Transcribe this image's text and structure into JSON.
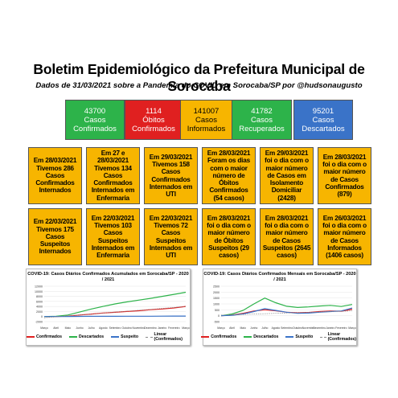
{
  "header": {
    "title": "Boletim Epidemiológico da Prefeitura Municipal de Sorocaba",
    "subtitle": "Dados de 31/03/2021 sobre a Pandemia do COVID em Sorocaba/SP por @hudsonaugusto"
  },
  "stats": [
    {
      "value": "43700",
      "line1": "Casos",
      "line2": "Confirmados",
      "color": "#2db34a"
    },
    {
      "value": "1114",
      "line1": "Óbitos",
      "line2": "Confirmados",
      "color": "#e02020"
    },
    {
      "value": "141007",
      "line1": "Casos",
      "line2": "Informados",
      "color": "#f7b500"
    },
    {
      "value": "41782",
      "line1": "Casos",
      "line2": "Recuperados",
      "color": "#2db34a"
    },
    {
      "value": "95201",
      "line1": "Casos",
      "line2": "Descartados",
      "color": "#3a73c8"
    }
  ],
  "cards": [
    "Em 28/03/2021 Tivemos 286 Casos Confirmados Internados",
    "Em 27 e 28/03/2021 Tivemos 134 Casos Confirmados Internados em Enfermaria",
    "Em 29/03/2021 Tivemos 158 Casos Confirmados Internados em UTI",
    "Em 28/03/2021 Foram os dias com o maior número de Óbitos Confirmados (54 casos)",
    "Em 29/03/2021 foi o dia com o maior número de Casos em Isolamento Domiciliar (2428)",
    "Em 28/03/2021 foi o dia com o maior número de Casos Confirmados (879)",
    "Em 22/03/2021 Tivemos 175 Casos Suspeitos Internados",
    "Em 22/03/2021 Tivemos 103 Casos Suspeitos Internados em Enfermaria",
    "Em 22/03/2021 Tivemos 72 Casos Suspeitos Internados em UTI",
    "Em 28/03/2021 foi o dia com o maior número de Óbitos Suspeitos (29 casos)",
    "Em 28/03/2021 foi o dia com o maior número de Casos Suspeitos (2645 casos)",
    "Em 26/03/2021 foi o dia com o maior número de Casos Informados (1406 casos)"
  ],
  "chart_data": [
    {
      "type": "line",
      "title": "COVID-19: Casos Diários Confirmados Acumulados em Sorocaba/SP - 2020 / 2021",
      "categories": [
        "Março",
        "Abril",
        "Maio",
        "Junho",
        "Julho",
        "Agosto",
        "Setembro",
        "Outubro",
        "Novembro",
        "Dezembro",
        "Janeiro",
        "Fevereiro",
        "Março"
      ],
      "ylim": [
        -2000,
        12000
      ],
      "yticks": [
        "12000",
        "10000",
        "8000",
        "6000",
        "4000",
        "2000",
        "0",
        "-2000"
      ],
      "series": [
        {
          "name": "Confirmados",
          "color": "#e02020",
          "values": [
            0,
            20,
            150,
            600,
            1000,
            1400,
            1700,
            2000,
            2300,
            2700,
            3000,
            3400,
            4000
          ]
        },
        {
          "name": "Descartados",
          "color": "#2db34a",
          "values": [
            0,
            120,
            600,
            1800,
            3000,
            4000,
            5000,
            5800,
            6500,
            7200,
            8000,
            8800,
            9600
          ]
        },
        {
          "name": "Suspeito",
          "color": "#3a73c8",
          "values": [
            0,
            10,
            40,
            80,
            100,
            110,
            110,
            120,
            130,
            140,
            160,
            180,
            200
          ]
        },
        {
          "name": "Linear (Confirmados)",
          "color": "#888888",
          "dashed": true,
          "values": [
            -500,
            -100,
            300,
            650,
            1000,
            1400,
            1750,
            2100,
            2500,
            2850,
            3250,
            3600,
            4000
          ]
        }
      ]
    },
    {
      "type": "line",
      "title": "COVID-19: Casos Diários Confirmados Mensais em Sorocaba/SP - 2020 / 2021",
      "categories": [
        "Março",
        "Abril",
        "Maio",
        "Junho",
        "Julho",
        "Agosto",
        "Setembro",
        "Outubro",
        "Novembro",
        "Dezembro",
        "Janeiro",
        "Fevereiro",
        "Março"
      ],
      "ylim": [
        -500,
        2500
      ],
      "yticks": [
        "2500",
        "2000",
        "1500",
        "1000",
        "500",
        "0",
        "-500"
      ],
      "series": [
        {
          "name": "Confirmados",
          "color": "#e02020",
          "values": [
            0,
            50,
            200,
            400,
            500,
            420,
            300,
            250,
            280,
            350,
            400,
            380,
            550
          ]
        },
        {
          "name": "Descartados",
          "color": "#2db34a",
          "values": [
            0,
            150,
            450,
            1000,
            1500,
            1100,
            800,
            700,
            750,
            820,
            880,
            780,
            950
          ]
        },
        {
          "name": "Suspeito",
          "color": "#3a73c8",
          "values": [
            0,
            40,
            150,
            350,
            600,
            450,
            300,
            200,
            220,
            300,
            350,
            400,
            650
          ]
        },
        {
          "name": "Linear (Confirmados)",
          "color": "#888888",
          "dashed": true,
          "values": [
            50,
            80,
            110,
            140,
            170,
            200,
            230,
            260,
            290,
            320,
            350,
            380,
            410
          ]
        }
      ]
    }
  ]
}
